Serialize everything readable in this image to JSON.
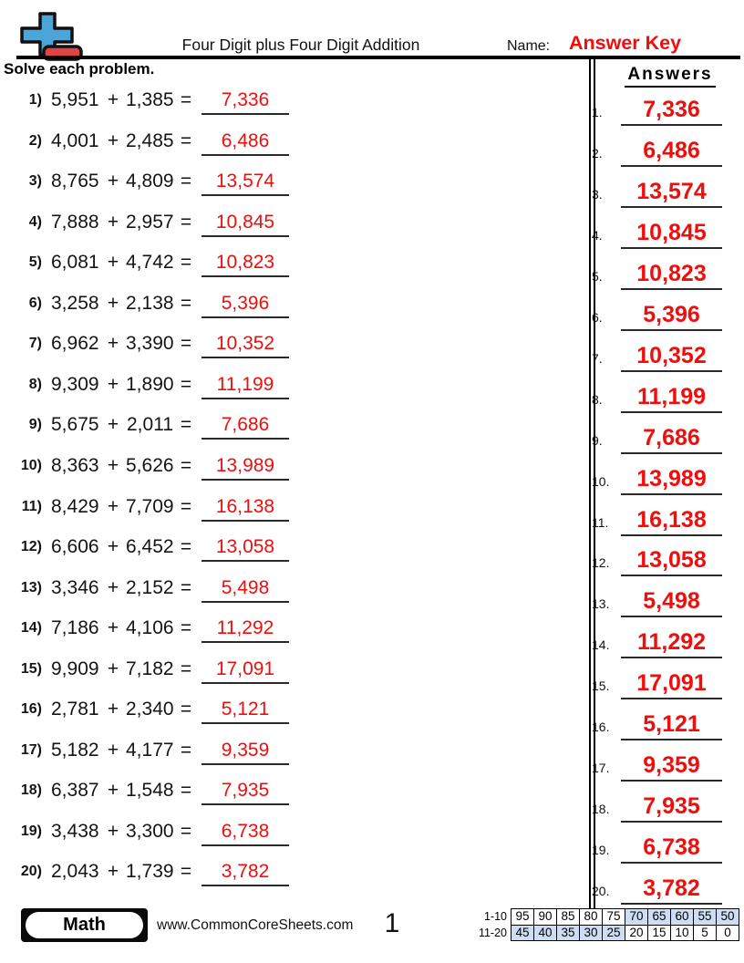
{
  "header": {
    "logo_icon": "plus-minus-math-icon",
    "title": "Four Digit plus Four Digit Addition",
    "name_label": "Name:",
    "name_value": "Answer Key"
  },
  "instruction": "Solve each problem.",
  "answers_panel": {
    "heading": "Answers"
  },
  "operator": "+",
  "equals": "=",
  "problems": [
    {
      "num": "1)",
      "a": "5,951",
      "b": "1,385",
      "answer": "7,336"
    },
    {
      "num": "2)",
      "a": "4,001",
      "b": "2,485",
      "answer": "6,486"
    },
    {
      "num": "3)",
      "a": "8,765",
      "b": "4,809",
      "answer": "13,574"
    },
    {
      "num": "4)",
      "a": "7,888",
      "b": "2,957",
      "answer": "10,845"
    },
    {
      "num": "5)",
      "a": "6,081",
      "b": "4,742",
      "answer": "10,823"
    },
    {
      "num": "6)",
      "a": "3,258",
      "b": "2,138",
      "answer": "5,396"
    },
    {
      "num": "7)",
      "a": "6,962",
      "b": "3,390",
      "answer": "10,352"
    },
    {
      "num": "8)",
      "a": "9,309",
      "b": "1,890",
      "answer": "11,199"
    },
    {
      "num": "9)",
      "a": "5,675",
      "b": "2,011",
      "answer": "7,686"
    },
    {
      "num": "10)",
      "a": "8,363",
      "b": "5,626",
      "answer": "13,989"
    },
    {
      "num": "11)",
      "a": "8,429",
      "b": "7,709",
      "answer": "16,138"
    },
    {
      "num": "12)",
      "a": "6,606",
      "b": "6,452",
      "answer": "13,058"
    },
    {
      "num": "13)",
      "a": "3,346",
      "b": "2,152",
      "answer": "5,498"
    },
    {
      "num": "14)",
      "a": "7,186",
      "b": "4,106",
      "answer": "11,292"
    },
    {
      "num": "15)",
      "a": "9,909",
      "b": "7,182",
      "answer": "17,091"
    },
    {
      "num": "16)",
      "a": "2,781",
      "b": "2,340",
      "answer": "5,121"
    },
    {
      "num": "17)",
      "a": "5,182",
      "b": "4,177",
      "answer": "9,359"
    },
    {
      "num": "18)",
      "a": "6,387",
      "b": "1,548",
      "answer": "7,935"
    },
    {
      "num": "19)",
      "a": "3,438",
      "b": "3,300",
      "answer": "6,738"
    },
    {
      "num": "20)",
      "a": "2,043",
      "b": "1,739",
      "answer": "3,782"
    }
  ],
  "answers": [
    {
      "num": "1.",
      "value": "7,336"
    },
    {
      "num": "2.",
      "value": "6,486"
    },
    {
      "num": "3.",
      "value": "13,574"
    },
    {
      "num": "4.",
      "value": "10,845"
    },
    {
      "num": "5.",
      "value": "10,823"
    },
    {
      "num": "6.",
      "value": "5,396"
    },
    {
      "num": "7.",
      "value": "10,352"
    },
    {
      "num": "8.",
      "value": "11,199"
    },
    {
      "num": "9.",
      "value": "7,686"
    },
    {
      "num": "10.",
      "value": "13,989"
    },
    {
      "num": "11.",
      "value": "16,138"
    },
    {
      "num": "12.",
      "value": "13,058"
    },
    {
      "num": "13.",
      "value": "5,498"
    },
    {
      "num": "14.",
      "value": "11,292"
    },
    {
      "num": "15.",
      "value": "17,091"
    },
    {
      "num": "16.",
      "value": "5,121"
    },
    {
      "num": "17.",
      "value": "9,359"
    },
    {
      "num": "18.",
      "value": "7,935"
    },
    {
      "num": "19.",
      "value": "6,738"
    },
    {
      "num": "20.",
      "value": "3,782"
    }
  ],
  "footer": {
    "subject": "Math",
    "website": "www.CommonCoreSheets.com",
    "page": "1",
    "score_table": {
      "rows": [
        {
          "label": "1-10",
          "cells": [
            {
              "v": "95",
              "shaded": false
            },
            {
              "v": "90",
              "shaded": false
            },
            {
              "v": "85",
              "shaded": false
            },
            {
              "v": "80",
              "shaded": false
            },
            {
              "v": "75",
              "shaded": false
            },
            {
              "v": "70",
              "shaded": true
            },
            {
              "v": "65",
              "shaded": true
            },
            {
              "v": "60",
              "shaded": true
            },
            {
              "v": "55",
              "shaded": true
            },
            {
              "v": "50",
              "shaded": true
            }
          ]
        },
        {
          "label": "11-20",
          "cells": [
            {
              "v": "45",
              "shaded": true
            },
            {
              "v": "40",
              "shaded": true
            },
            {
              "v": "35",
              "shaded": true
            },
            {
              "v": "30",
              "shaded": true
            },
            {
              "v": "25",
              "shaded": true
            },
            {
              "v": "20",
              "shaded": false
            },
            {
              "v": "15",
              "shaded": false
            },
            {
              "v": "10",
              "shaded": false
            },
            {
              "v": "5",
              "shaded": false
            },
            {
              "v": "0",
              "shaded": false
            }
          ]
        }
      ]
    }
  },
  "colors": {
    "answer_red": "#f20d0d",
    "logo_blue": "#4ba5d9",
    "logo_red": "#e04545",
    "shaded_cell": "#cdddf3",
    "rule_black": "#000000"
  }
}
